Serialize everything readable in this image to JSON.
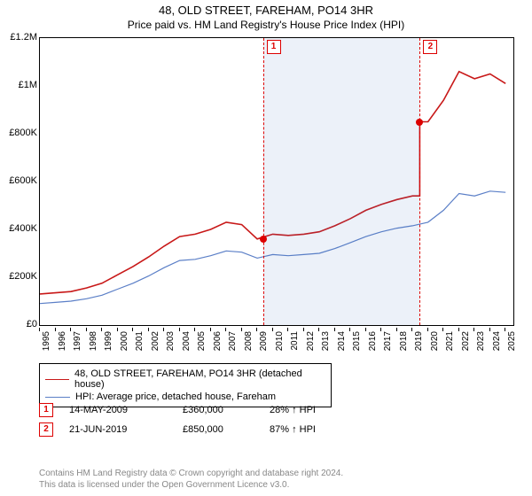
{
  "title_line1": "48, OLD STREET, FAREHAM, PO14 3HR",
  "title_line2": "Price paid vs. HM Land Registry's House Price Index (HPI)",
  "chart": {
    "type": "line",
    "x_years": [
      1995,
      1996,
      1997,
      1998,
      1999,
      2000,
      2001,
      2002,
      2003,
      2004,
      2005,
      2006,
      2007,
      2008,
      2009,
      2010,
      2011,
      2012,
      2013,
      2014,
      2015,
      2016,
      2017,
      2018,
      2019,
      2020,
      2021,
      2022,
      2023,
      2024,
      2025
    ],
    "x_range": [
      1995,
      2025.5
    ],
    "ylim": [
      0,
      1200000
    ],
    "ytick_step": 200000,
    "ytick_labels": [
      "£0",
      "£200K",
      "£400K",
      "£600K",
      "£800K",
      "£1M",
      "£1.2M"
    ],
    "hpi_series": {
      "color": "#5b7fc7",
      "stroke_width": 1.2,
      "values": [
        90000,
        95000,
        100000,
        110000,
        125000,
        150000,
        175000,
        205000,
        240000,
        270000,
        275000,
        290000,
        310000,
        305000,
        280000,
        295000,
        290000,
        295000,
        300000,
        320000,
        345000,
        370000,
        390000,
        405000,
        415000,
        430000,
        480000,
        550000,
        540000,
        560000,
        555000
      ]
    },
    "subject_series": {
      "color": "#c81818",
      "stroke_width": 1.6,
      "values": [
        130000,
        135000,
        140000,
        155000,
        175000,
        210000,
        245000,
        285000,
        330000,
        370000,
        380000,
        400000,
        430000,
        420000,
        360000,
        380000,
        375000,
        380000,
        390000,
        415000,
        445000,
        480000,
        505000,
        525000,
        540000,
        850000,
        940000,
        1060000,
        1030000,
        1050000,
        1010000
      ]
    },
    "shaded": [
      {
        "from": 2009.37,
        "to": 2019.47,
        "color": "rgba(70,120,200,0.10)"
      }
    ],
    "sale_markers": [
      {
        "n": "1",
        "year": 2009.37,
        "price": 360000
      },
      {
        "n": "2",
        "year": 2019.47,
        "price": 850000
      }
    ],
    "subject_sale_jump": {
      "at": 2019.47,
      "from": 540000,
      "to": 850000
    },
    "background": "#ffffff",
    "grid": false,
    "border_color": "#000000"
  },
  "legend": {
    "items": [
      {
        "label": "48, OLD STREET, FAREHAM, PO14 3HR (detached house)",
        "color": "#c81818",
        "width": 1.6
      },
      {
        "label": "HPI: Average price, detached house, Fareham",
        "color": "#5b7fc7",
        "width": 1.2
      }
    ]
  },
  "sales": [
    {
      "n": "1",
      "date": "14-MAY-2009",
      "price": "£360,000",
      "pct": "28% ↑ HPI"
    },
    {
      "n": "2",
      "date": "21-JUN-2019",
      "price": "£850,000",
      "pct": "87% ↑ HPI"
    }
  ],
  "footer_l1": "Contains HM Land Registry data © Crown copyright and database right 2024.",
  "footer_l2": "This data is licensed under the Open Government Licence v3.0."
}
